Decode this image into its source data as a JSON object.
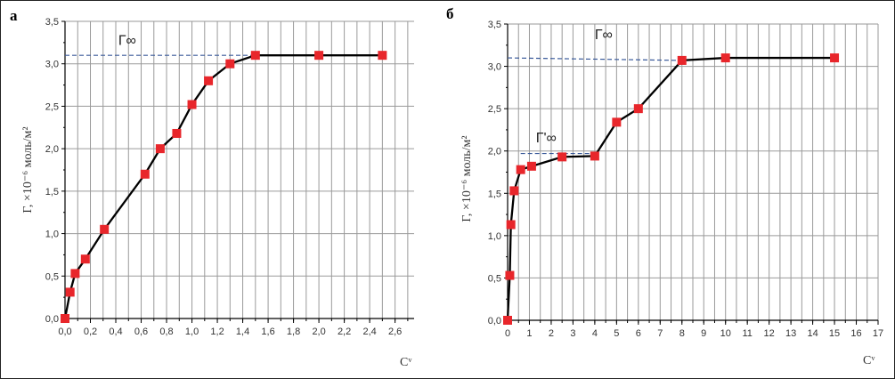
{
  "chart_data": [
    {
      "type": "line",
      "panel_label": "а",
      "xlabel": "Cᵛ",
      "ylabel": "Г, ×10⁻⁶ моль/м²",
      "xlim": [
        0,
        2.75
      ],
      "ylim": [
        0,
        3.5
      ],
      "xticks": [
        "0,0",
        "0,2",
        "0,4",
        "0,6",
        "0,8",
        "1,0",
        "1,2",
        "1,4",
        "1,6",
        "1,8",
        "2,0",
        "2,2",
        "2,4",
        "2,6"
      ],
      "yticks": [
        "0,0",
        "0,5",
        "1,0",
        "1,5",
        "2,0",
        "2,5",
        "3,0",
        "3,5"
      ],
      "grid": true,
      "x": [
        0,
        0.04,
        0.08,
        0.16,
        0.31,
        0.63,
        0.75,
        0.88,
        1.0,
        1.13,
        1.3,
        1.5,
        2.0,
        2.5
      ],
      "y": [
        0,
        0.31,
        0.53,
        0.7,
        1.05,
        1.7,
        2.0,
        2.18,
        2.52,
        2.8,
        3.0,
        3.1,
        3.1,
        3.1
      ],
      "reference_lines": [
        {
          "label": "Г∞",
          "y": 3.1,
          "x_from": 0,
          "x_to": 1.5
        }
      ],
      "colors": {
        "marker": "#e8262b",
        "line": "#000000",
        "dashed": "#3a5a9a"
      }
    },
    {
      "type": "line",
      "panel_label": "б",
      "xlabel": "Cᵛ",
      "ylabel": "Г, ×10⁻⁶ моль/м²",
      "xlim": [
        0,
        17
      ],
      "ylim": [
        0,
        3.5
      ],
      "xticks": [
        "0",
        "1",
        "2",
        "3",
        "4",
        "5",
        "6",
        "7",
        "8",
        "9",
        "10",
        "11",
        "12",
        "13",
        "14",
        "15",
        "16",
        "17"
      ],
      "yticks": [
        "0,0",
        "0,5",
        "1,0",
        "1,5",
        "2,0",
        "2,5",
        "3,0",
        "3,5"
      ],
      "grid": true,
      "x": [
        0,
        0.1,
        0.15,
        0.3,
        0.6,
        1.1,
        2.5,
        4,
        5,
        6,
        8,
        10,
        15
      ],
      "y": [
        0,
        0.53,
        1.13,
        1.53,
        1.78,
        1.82,
        1.93,
        1.94,
        2.34,
        2.5,
        3.07,
        3.1,
        3.1
      ],
      "reference_lines": [
        {
          "label": "Г∞",
          "y": 3.1,
          "y_end": 3.07,
          "x_from": 0,
          "x_to": 8
        },
        {
          "label": "Г'∞",
          "y": 1.97,
          "x_from": 0.6,
          "x_to": 4
        }
      ],
      "colors": {
        "marker": "#e8262b",
        "line": "#000000",
        "dashed": "#3a5a9a"
      }
    }
  ]
}
